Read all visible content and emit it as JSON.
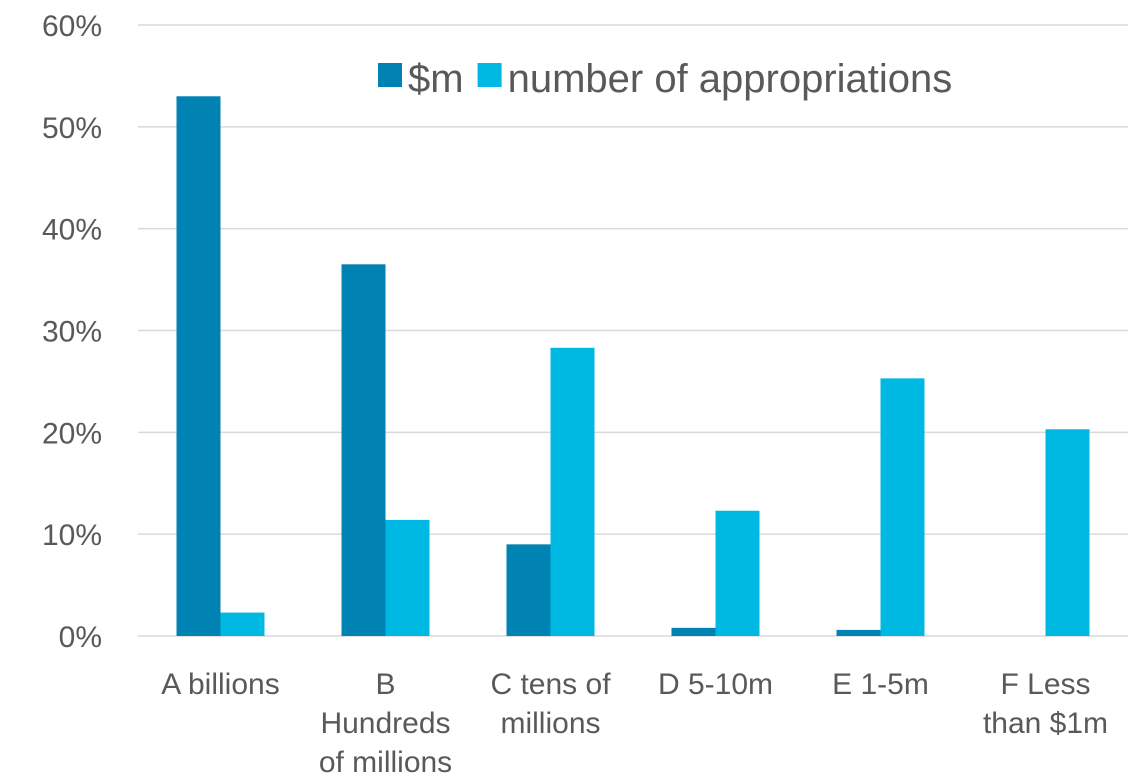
{
  "chart_data": {
    "type": "bar",
    "title": "",
    "xlabel": "",
    "ylabel": "",
    "categories": [
      [
        "A billions"
      ],
      [
        "B",
        "Hundreds",
        "of millions"
      ],
      [
        "C tens of",
        "millions"
      ],
      [
        "D 5-10m"
      ],
      [
        "E 1-5m"
      ],
      [
        "F Less",
        "than $1m"
      ]
    ],
    "series": [
      {
        "name": "$m",
        "color": "#0083B3",
        "values": [
          53,
          36.5,
          9,
          0.8,
          0.6,
          0
        ]
      },
      {
        "name": "number of appropriations",
        "color": "#00B9E3",
        "values": [
          2.3,
          11.4,
          28.3,
          12.3,
          25.3,
          20.3
        ]
      }
    ],
    "ylim": [
      0,
      60
    ],
    "yticks": [
      0,
      10,
      20,
      30,
      40,
      50,
      60
    ],
    "ytick_format": "percent",
    "grid": true,
    "legend_position": "top-right"
  }
}
